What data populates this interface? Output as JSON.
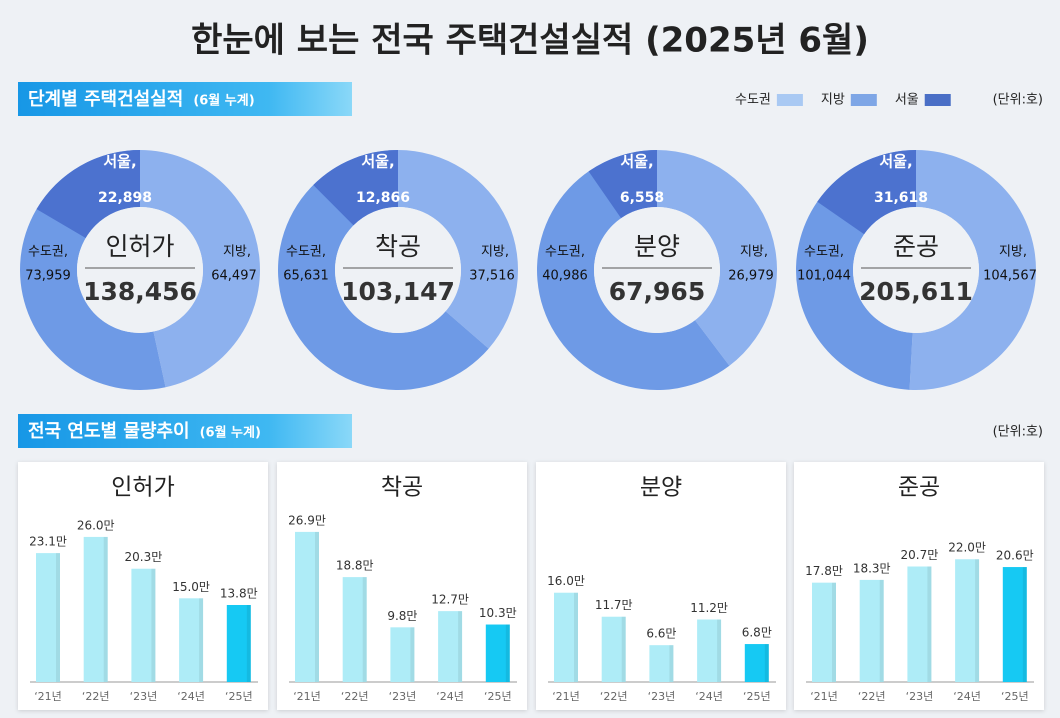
{
  "title": "한눈에 보는 전국 주택건설실적 (2025년 6월)",
  "sections": [
    {
      "title": "단계별 주택건설실적",
      "note": "(6월 누계)",
      "unit": "(단위:호)"
    },
    {
      "title": "전국 연도별 물량추이",
      "note": "(6월 누계)",
      "unit": "(단위:호)"
    }
  ],
  "legend": [
    {
      "name": "수도권",
      "color": "#a9c9f3"
    },
    {
      "name": "지방",
      "color": "#7ea6e6"
    },
    {
      "name": "서울",
      "color": "#4a6fc6"
    }
  ],
  "chart_data": [
    {
      "type": "donut",
      "title": "인허가",
      "total": 138456,
      "total_label": "138,456",
      "series": [
        {
          "name": "지방,",
          "value": 64497,
          "value_label": "64,497",
          "color": "#8db1ee"
        },
        {
          "name": "수도권,",
          "value": 73959,
          "value_label": "73,959",
          "color": "#6e9ae6"
        },
        {
          "name": "서울,",
          "value": 22898,
          "value_label": "22,898",
          "color": "#4c72cf"
        }
      ]
    },
    {
      "type": "donut",
      "title": "착공",
      "total": 103147,
      "total_label": "103,147",
      "series": [
        {
          "name": "지방,",
          "value": 37516,
          "value_label": "37,516",
          "color": "#8db1ee"
        },
        {
          "name": "수도권,",
          "value": 65631,
          "value_label": "65,631",
          "color": "#6e9ae6"
        },
        {
          "name": "서울,",
          "value": 12866,
          "value_label": "12,866",
          "color": "#4c72cf"
        }
      ]
    },
    {
      "type": "donut",
      "title": "분양",
      "total": 67965,
      "total_label": "67,965",
      "series": [
        {
          "name": "지방,",
          "value": 26979,
          "value_label": "26,979",
          "color": "#8db1ee"
        },
        {
          "name": "수도권,",
          "value": 40986,
          "value_label": "40,986",
          "color": "#6e9ae6"
        },
        {
          "name": "서울,",
          "value": 6558,
          "value_label": "6,558",
          "color": "#4c72cf"
        }
      ]
    },
    {
      "type": "donut",
      "title": "준공",
      "total": 205611,
      "total_label": "205,611",
      "series": [
        {
          "name": "지방,",
          "value": 104567,
          "value_label": "104,567",
          "color": "#8db1ee"
        },
        {
          "name": "수도권,",
          "value": 101044,
          "value_label": "101,044",
          "color": "#6e9ae6"
        },
        {
          "name": "서울,",
          "value": 31618,
          "value_label": "31,618",
          "color": "#4c72cf"
        }
      ]
    },
    {
      "type": "bar",
      "title": "인허가",
      "categories": [
        "‘21년",
        "‘22년",
        "‘23년",
        "‘24년",
        "‘25년"
      ],
      "values": [
        23.1,
        26.0,
        20.3,
        15.0,
        13.8
      ],
      "value_labels": [
        "23.1만",
        "26.0만",
        "20.3만",
        "15.0만",
        "13.8만"
      ],
      "colors": [
        "#aeecf7",
        "#aeecf7",
        "#aeecf7",
        "#aeecf7",
        "#16c9f3"
      ]
    },
    {
      "type": "bar",
      "title": "착공",
      "categories": [
        "‘21년",
        "‘22년",
        "‘23년",
        "‘24년",
        "‘25년"
      ],
      "values": [
        26.9,
        18.8,
        9.8,
        12.7,
        10.3
      ],
      "value_labels": [
        "26.9만",
        "18.8만",
        "9.8만",
        "12.7만",
        "10.3만"
      ],
      "colors": [
        "#aeecf7",
        "#aeecf7",
        "#aeecf7",
        "#aeecf7",
        "#16c9f3"
      ]
    },
    {
      "type": "bar",
      "title": "분양",
      "categories": [
        "‘21년",
        "‘22년",
        "‘23년",
        "‘24년",
        "‘25년"
      ],
      "values": [
        16.0,
        11.7,
        6.6,
        11.2,
        6.8
      ],
      "value_labels": [
        "16.0만",
        "11.7만",
        "6.6만",
        "11.2만",
        "6.8만"
      ],
      "colors": [
        "#aeecf7",
        "#aeecf7",
        "#aeecf7",
        "#aeecf7",
        "#16c9f3"
      ]
    },
    {
      "type": "bar",
      "title": "준공",
      "categories": [
        "‘21년",
        "‘22년",
        "‘23년",
        "‘24년",
        "‘25년"
      ],
      "values": [
        17.8,
        18.3,
        20.7,
        22.0,
        20.6
      ],
      "value_labels": [
        "17.8만",
        "18.3만",
        "20.7만",
        "22.0만",
        "20.6만"
      ],
      "colors": [
        "#aeecf7",
        "#aeecf7",
        "#aeecf7",
        "#aeecf7",
        "#16c9f3"
      ]
    }
  ]
}
